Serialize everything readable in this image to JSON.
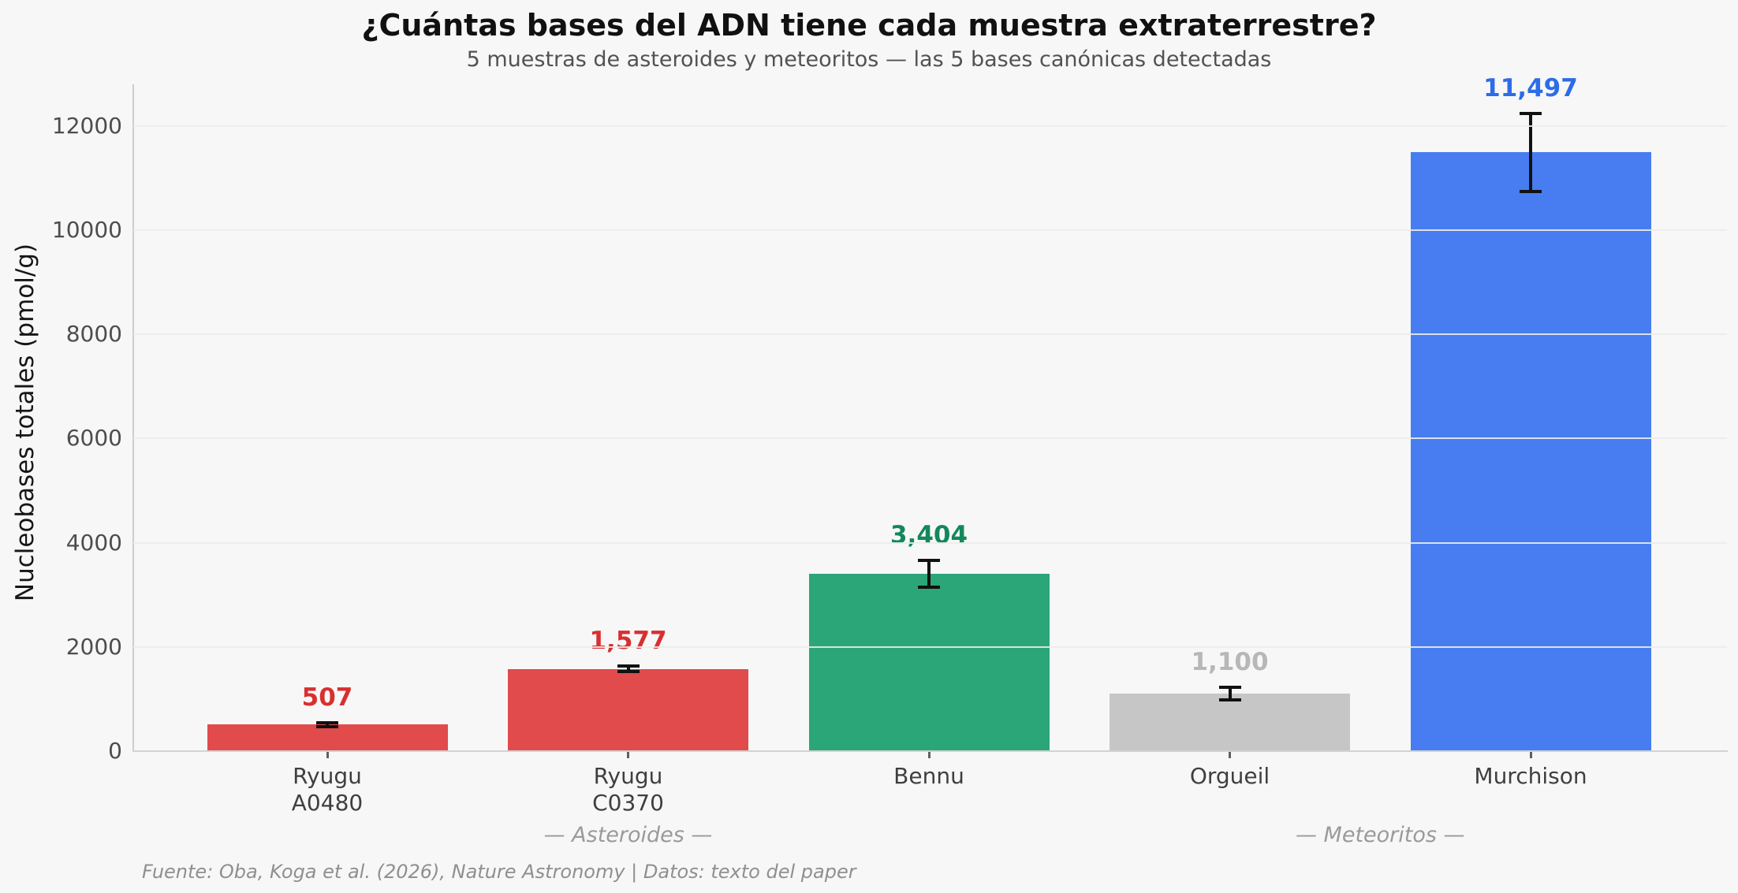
{
  "chart_data": {
    "type": "bar",
    "title": "¿Cuántas bases del ADN tiene cada muestra extraterrestre?",
    "subtitle": "5 muestras de asteroides y meteoritos — las 5 bases canónicas detectadas",
    "ylabel": "Nucleobases totales (pmol/g)",
    "xlabel": "",
    "source_note": "Fuente: Oba, Koga et al. (2026), Nature Astronomy | Datos: texto del paper",
    "ylim": [
      0,
      12800
    ],
    "yticks": [
      0,
      2000,
      4000,
      6000,
      8000,
      10000,
      12000
    ],
    "grid": true,
    "legend": "none",
    "categories": [
      "Ryugu\nA0480",
      "Ryugu\nC0370",
      "Bennu",
      "Orgueil",
      "Murchison"
    ],
    "bars": [
      {
        "category": "Ryugu\nA0480",
        "value": 507,
        "value_label": "507",
        "error": 35,
        "bar_color": "#e14b4b",
        "value_label_color": "#d92f2f"
      },
      {
        "category": "Ryugu\nC0370",
        "value": 1577,
        "value_label": "1,577",
        "error": 55,
        "bar_color": "#e14b4b",
        "value_label_color": "#d92f2f"
      },
      {
        "category": "Bennu",
        "value": 3404,
        "value_label": "3,404",
        "error": 250,
        "bar_color": "#2ba679",
        "value_label_color": "#12885c"
      },
      {
        "category": "Orgueil",
        "value": 1100,
        "value_label": "1,100",
        "error": 120,
        "bar_color": "#c6c6c6",
        "value_label_color": "#b7b7b7"
      },
      {
        "category": "Murchison",
        "value": 11497,
        "value_label": "11,497",
        "error": 750,
        "bar_color": "#477df0",
        "value_label_color": "#2d6ce8"
      }
    ],
    "groups": [
      {
        "label": "— Asteroides —",
        "span": [
          0,
          2
        ]
      },
      {
        "label": "— Meteoritos —",
        "span": [
          3,
          4
        ]
      }
    ],
    "error_bar_color": "#111111"
  }
}
